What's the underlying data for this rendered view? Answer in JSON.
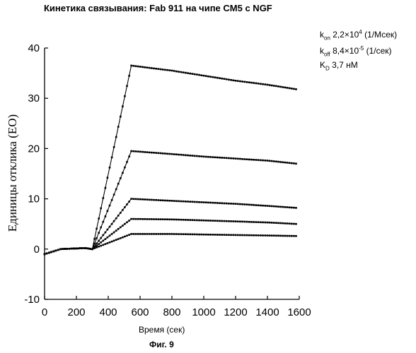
{
  "chart_data": {
    "type": "scatter",
    "title": "Кинетика связывания: Fab 911 на чипе CM5 с NGF",
    "xlabel": "Время (сек)",
    "ylabel": "Единицы отклика (ЕО)",
    "caption": "Фиг. 9",
    "xlim": [
      0,
      1600
    ],
    "ylim": [
      -10,
      40
    ],
    "x_ticks": [
      0,
      200,
      400,
      600,
      800,
      1000,
      1200,
      1400,
      1600
    ],
    "y_ticks": [
      -10,
      0,
      10,
      20,
      30,
      40
    ],
    "x_tick_labels": [
      "0",
      "200",
      "400",
      "600",
      "800",
      "1000",
      "1200",
      "1400",
      "1600"
    ],
    "y_tick_labels": [
      "-10",
      "0",
      "10",
      "20",
      "30",
      "40"
    ],
    "grid": false,
    "marker_color": "#000000",
    "kinetic_parameters": {
      "kon": {
        "symbol": "k",
        "sub": "on",
        "mantissa": "2,2×10",
        "exp": "4",
        "unit": "(1/Мсек)"
      },
      "koff": {
        "symbol": "k",
        "sub": "off",
        "mantissa": "8,4×10",
        "exp": "-5",
        "unit": "(1/сек)"
      },
      "kd": {
        "symbol": "K",
        "sub": "D",
        "value": "3,7 нМ"
      }
    },
    "series": [
      {
        "points": [
          [
            0,
            -1
          ],
          [
            100,
            0
          ],
          [
            250,
            0.2
          ],
          [
            300,
            0
          ],
          [
            545,
            36.5
          ],
          [
            800,
            35.5
          ],
          [
            1000,
            34.5
          ],
          [
            1200,
            33.5
          ],
          [
            1400,
            32.7
          ],
          [
            1580,
            31.8
          ]
        ]
      },
      {
        "points": [
          [
            0,
            -1
          ],
          [
            100,
            0
          ],
          [
            250,
            0.2
          ],
          [
            300,
            0
          ],
          [
            545,
            19.5
          ],
          [
            800,
            18.9
          ],
          [
            1000,
            18.4
          ],
          [
            1200,
            18.0
          ],
          [
            1400,
            17.6
          ],
          [
            1580,
            17.0
          ]
        ]
      },
      {
        "points": [
          [
            0,
            -1
          ],
          [
            100,
            0
          ],
          [
            250,
            0.2
          ],
          [
            300,
            0
          ],
          [
            545,
            10
          ],
          [
            800,
            9.6
          ],
          [
            1000,
            9.3
          ],
          [
            1200,
            9.0
          ],
          [
            1400,
            8.6
          ],
          [
            1580,
            8.2
          ]
        ]
      },
      {
        "points": [
          [
            0,
            -1
          ],
          [
            100,
            0
          ],
          [
            250,
            0.2
          ],
          [
            300,
            0
          ],
          [
            545,
            6
          ],
          [
            800,
            5.9
          ],
          [
            1000,
            5.7
          ],
          [
            1200,
            5.5
          ],
          [
            1400,
            5.3
          ],
          [
            1580,
            5.0
          ]
        ]
      },
      {
        "points": [
          [
            0,
            -1
          ],
          [
            100,
            0
          ],
          [
            250,
            0.2
          ],
          [
            300,
            0
          ],
          [
            545,
            3
          ],
          [
            800,
            3.0
          ],
          [
            1000,
            2.9
          ],
          [
            1200,
            2.8
          ],
          [
            1400,
            2.7
          ],
          [
            1580,
            2.6
          ]
        ]
      }
    ]
  }
}
